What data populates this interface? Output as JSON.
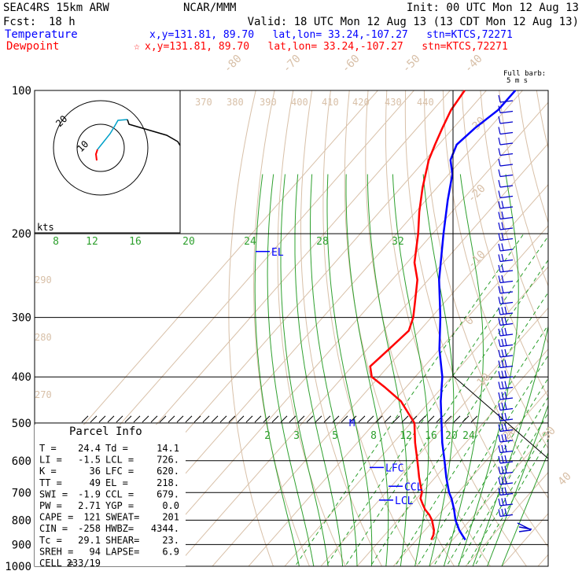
{
  "header": {
    "model": "SEAC4RS 15km ARW",
    "org": "NCAR/MMM",
    "init": "Init: 00 UTC Mon 12 Aug 13",
    "fcst_label": "Fcst:",
    "fcst_value": "18 h",
    "valid": "Valid: 18 UTC Mon 12 Aug 13 (13 CDT Mon 12 Aug 13)",
    "temp_label": "Temperature",
    "temp_info": "x,y=131.81, 89.70   lat,lon= 33.24,-107.27   stn=KTCS,72271",
    "dew_label": "Dewpoint",
    "dew_info": "x,y=131.81, 89.70   lat,lon= 33.24,-107.27   stn=KTCS,72271"
  },
  "colors": {
    "temperature": "#0000ff",
    "dewpoint": "#ff0000",
    "mixing_ratio": "#2ea02e",
    "theta": "#d8c0a8",
    "isotherm": "#d8c0a8",
    "axes": "#000000",
    "barbs": "#0000cc"
  },
  "barb_label": "Full barb:",
  "barb_units": "5 m s",
  "hodo": {
    "units_label": "kts",
    "ring_labels": [
      "10",
      "20"
    ],
    "trace_colors": [
      "#ff0000",
      "#00a0c8",
      "#000000"
    ]
  },
  "markers": {
    "el": "EL",
    "lfc": "LFC",
    "ccl": "CCL",
    "lcl": "LCL",
    "mb": "M"
  },
  "parcel": {
    "title": "Parcel Info",
    "rows": [
      [
        "T  =",
        "24.4",
        "Td =",
        "14.1"
      ],
      [
        "LI =",
        "-1.5",
        "LCL =",
        "726."
      ],
      [
        "K  =",
        "36",
        "LFC =",
        "620."
      ],
      [
        "TT =",
        "49",
        "EL  =",
        "218."
      ],
      [
        "SWI =",
        "-1.9",
        "CCL =",
        "679."
      ],
      [
        "PW =",
        "2.71",
        "YGP =",
        "0.0"
      ],
      [
        "CAPE =",
        "121",
        "SWEAT=",
        "201"
      ],
      [
        "CIN =",
        "-258",
        "HWBZ=",
        "4344."
      ],
      [
        "Tc =",
        "29.1",
        "SHEAR=",
        "23."
      ],
      [
        "SREH =",
        "94",
        "LAPSE=",
        "6.9"
      ],
      [
        "CELL =",
        "233/19",
        "",
        ""
      ]
    ]
  },
  "chart_data": {
    "type": "line",
    "title": "",
    "xlabel": "",
    "ylabel": "",
    "pressure_ticks": [
      100,
      200,
      300,
      400,
      500,
      600,
      700,
      800,
      900,
      1000
    ],
    "pressure_labels": [
      "100",
      "200",
      "300",
      "400",
      "500",
      "600",
      "700",
      "800",
      "900",
      "1000"
    ],
    "isotherm_labels": [
      "-80",
      "-70",
      "-60",
      "-50",
      "-40",
      "-30",
      "-20",
      "-10",
      "0",
      "10",
      "20",
      "30",
      "40"
    ],
    "theta_labels": [
      "370",
      "380",
      "390",
      "400",
      "410",
      "420",
      "430",
      "440",
      "290",
      "280",
      "270"
    ],
    "mixing_ratio_upper": [
      "8",
      "12",
      "16",
      "20",
      "24",
      "28",
      "32"
    ],
    "mixing_ratio_lower": [
      "2",
      "3",
      "5",
      "8",
      "12",
      "16",
      "20",
      "24"
    ],
    "series": [
      {
        "name": "Temperature",
        "p": [
          880,
          860,
          840,
          800,
          760,
          720,
          700,
          650,
          600,
          550,
          500,
          450,
          400,
          350,
          300,
          250,
          200,
          170,
          150,
          140,
          130,
          120,
          110,
          100
        ],
        "t": [
          23.5,
          21.5,
          19.5,
          16.0,
          13.0,
          9.6,
          7.5,
          3.0,
          -1.5,
          -6.5,
          -11.5,
          -17.0,
          -22.5,
          -30.0,
          -37.5,
          -47.0,
          -57.0,
          -64.0,
          -69.0,
          -73.0,
          -75.0,
          -74.0,
          -72.0,
          -72.0
        ]
      },
      {
        "name": "Dewpoint",
        "p": [
          880,
          860,
          840,
          800,
          780,
          760,
          740,
          720,
          700,
          650,
          600,
          550,
          500,
          450,
          420,
          400,
          380,
          350,
          320,
          300,
          280,
          250,
          230,
          200,
          180,
          160,
          140,
          130,
          120,
          110,
          100
        ],
        "t": [
          14.1,
          13.5,
          12.5,
          9.5,
          7.5,
          5.0,
          3.0,
          1.0,
          0.0,
          -4.5,
          -9.0,
          -14.0,
          -19.0,
          -28.0,
          -36.0,
          -42.0,
          -45.0,
          -44.0,
          -43.0,
          -45.0,
          -48.0,
          -53.0,
          -58.0,
          -64.0,
          -69.0,
          -74.0,
          -79.0,
          -81.0,
          -83.0,
          -85.0,
          -86.0
        ]
      }
    ]
  }
}
